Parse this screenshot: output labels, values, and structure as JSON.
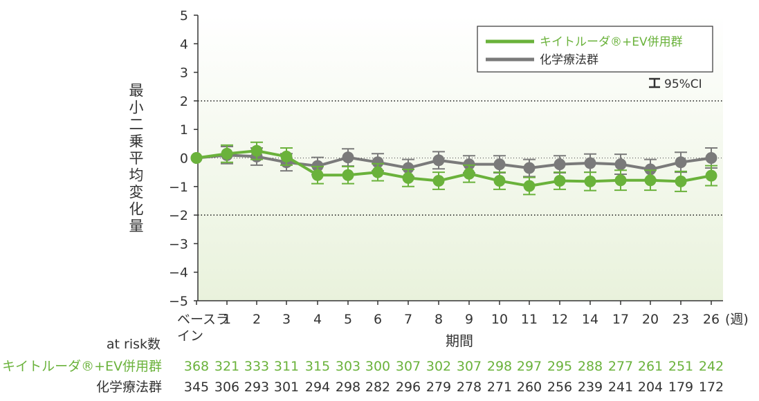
{
  "colors": {
    "green": "#6ab23b",
    "gray": "#7a7a7a",
    "text": "#333333",
    "bg_top": "#ffffff",
    "bg_bottom": "#e9f2dc"
  },
  "chart_data": {
    "type": "line",
    "ylabel": "最小二乗平均変化量",
    "xlabel": "期間",
    "x_unit": "(週)",
    "categories": [
      "ベースライン",
      "1",
      "2",
      "3",
      "4",
      "5",
      "6",
      "7",
      "8",
      "9",
      "10",
      "11",
      "12",
      "14",
      "17",
      "20",
      "23",
      "26"
    ],
    "ylim": [
      -5,
      5
    ],
    "y_ticks": [
      "5",
      "4",
      "3",
      "2",
      "1",
      "0",
      "−1",
      "−2",
      "−3",
      "−4",
      "−5"
    ],
    "reference_lines": [
      2,
      -2
    ],
    "ci_label": "95%CI",
    "legend_position": "top-right",
    "series": [
      {
        "name": "キイトルーダ®+EV併用群",
        "color": "#6ab23b",
        "values": [
          0,
          0.15,
          0.25,
          0.05,
          -0.6,
          -0.6,
          -0.5,
          -0.7,
          -0.8,
          -0.55,
          -0.8,
          -0.98,
          -0.8,
          -0.82,
          -0.78,
          -0.78,
          -0.82,
          -0.62
        ],
        "ci_half": [
          0,
          0.3,
          0.3,
          0.3,
          0.3,
          0.3,
          0.3,
          0.3,
          0.3,
          0.3,
          0.3,
          0.3,
          0.3,
          0.32,
          0.35,
          0.35,
          0.35,
          0.35
        ]
      },
      {
        "name": "化学療法群",
        "color": "#7a7a7a",
        "values": [
          0,
          0.1,
          0.05,
          -0.15,
          -0.28,
          0.02,
          -0.15,
          -0.35,
          -0.08,
          -0.22,
          -0.22,
          -0.35,
          -0.22,
          -0.18,
          -0.22,
          -0.4,
          -0.15,
          0.0
        ],
        "ci_half": [
          0,
          0.3,
          0.3,
          0.3,
          0.3,
          0.3,
          0.3,
          0.3,
          0.3,
          0.3,
          0.3,
          0.3,
          0.3,
          0.32,
          0.35,
          0.35,
          0.35,
          0.35
        ]
      }
    ]
  },
  "at_risk": {
    "header": "at risk数",
    "rows": [
      {
        "label": "キイトルーダ®+EV併用群",
        "color": "#6ab23b",
        "values": [
          "368",
          "321",
          "333",
          "311",
          "315",
          "303",
          "300",
          "307",
          "302",
          "307",
          "298",
          "297",
          "295",
          "288",
          "277",
          "261",
          "251",
          "242"
        ]
      },
      {
        "label": "化学療法群",
        "color": "#333333",
        "values": [
          "345",
          "306",
          "293",
          "301",
          "294",
          "298",
          "282",
          "296",
          "279",
          "278",
          "271",
          "260",
          "256",
          "239",
          "241",
          "204",
          "179",
          "172"
        ]
      }
    ]
  }
}
